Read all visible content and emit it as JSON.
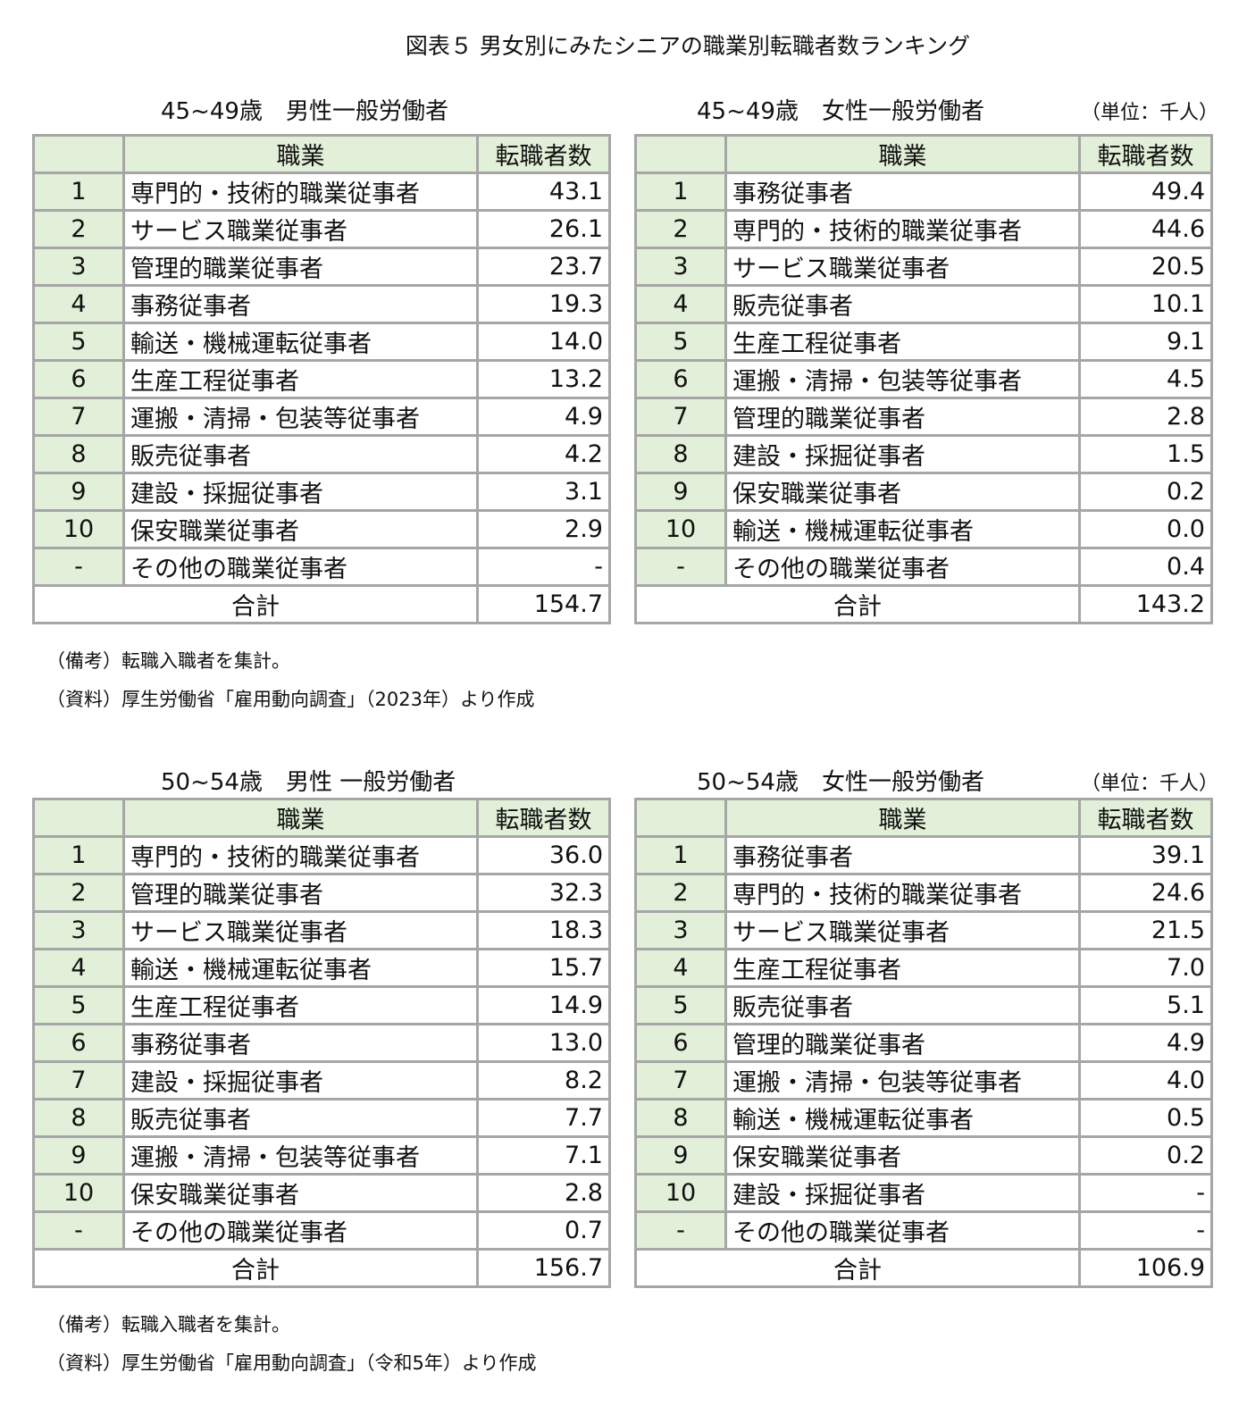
{
  "title": "図表５ 男女別にみたシニアの職業別転職者数ランキング",
  "unit": "（単位：千人）",
  "headers": {
    "occupation": "職業",
    "count": "転職者数"
  },
  "total_label": "合計",
  "tables": [
    {
      "subtitle": "45~49歳　男性一般労働者",
      "rows": [
        [
          "1",
          "専門的・技術的職業従事者",
          "43.1"
        ],
        [
          "2",
          "サービス職業従事者",
          "26.1"
        ],
        [
          "3",
          "管理的職業従事者",
          "23.7"
        ],
        [
          "4",
          "事務従事者",
          "19.3"
        ],
        [
          "5",
          "輸送・機械運転従事者",
          "14.0"
        ],
        [
          "6",
          "生産工程従事者",
          "13.2"
        ],
        [
          "7",
          "運搬・清掃・包装等従事者",
          "4.9"
        ],
        [
          "8",
          "販売従事者",
          "4.2"
        ],
        [
          "9",
          "建設・採掘従事者",
          "3.1"
        ],
        [
          "10",
          "保安職業従事者",
          "2.9"
        ],
        [
          "-",
          "その他の職業従事者",
          "-"
        ]
      ],
      "total": "154.7"
    },
    {
      "subtitle": "45~49歳　女性一般労働者",
      "rows": [
        [
          "1",
          "事務従事者",
          "49.4"
        ],
        [
          "2",
          "専門的・技術的職業従事者",
          "44.6"
        ],
        [
          "3",
          "サービス職業従事者",
          "20.5"
        ],
        [
          "4",
          "販売従事者",
          "10.1"
        ],
        [
          "5",
          "生産工程従事者",
          "9.1"
        ],
        [
          "6",
          "運搬・清掃・包装等従事者",
          "4.5"
        ],
        [
          "7",
          "管理的職業従事者",
          "2.8"
        ],
        [
          "8",
          "建設・採掘従事者",
          "1.5"
        ],
        [
          "9",
          "保安職業従事者",
          "0.2"
        ],
        [
          "10",
          "輸送・機械運転従事者",
          "0.0"
        ],
        [
          "-",
          "その他の職業従事者",
          "0.4"
        ]
      ],
      "total": "143.2"
    },
    {
      "subtitle": "50~54歳　男性 一般労働者",
      "rows": [
        [
          "1",
          "専門的・技術的職業従事者",
          "36.0"
        ],
        [
          "2",
          "管理的職業従事者",
          "32.3"
        ],
        [
          "3",
          "サービス職業従事者",
          "18.3"
        ],
        [
          "4",
          "輸送・機械運転従事者",
          "15.7"
        ],
        [
          "5",
          "生産工程従事者",
          "14.9"
        ],
        [
          "6",
          "事務従事者",
          "13.0"
        ],
        [
          "7",
          "建設・採掘従事者",
          "8.2"
        ],
        [
          "8",
          "販売従事者",
          "7.7"
        ],
        [
          "9",
          "運搬・清掃・包装等従事者",
          "7.1"
        ],
        [
          "10",
          "保安職業従事者",
          "2.8"
        ],
        [
          "-",
          "その他の職業従事者",
          "0.7"
        ]
      ],
      "total": "156.7"
    },
    {
      "subtitle": "50~54歳　女性一般労働者",
      "rows": [
        [
          "1",
          "事務従事者",
          "39.1"
        ],
        [
          "2",
          "専門的・技術的職業従事者",
          "24.6"
        ],
        [
          "3",
          "サービス職業従事者",
          "21.5"
        ],
        [
          "4",
          "生産工程従事者",
          "7.0"
        ],
        [
          "5",
          "販売従事者",
          "5.1"
        ],
        [
          "6",
          "管理的職業従事者",
          "4.9"
        ],
        [
          "7",
          "運搬・清掃・包装等従事者",
          "4.0"
        ],
        [
          "8",
          "輸送・機械運転従事者",
          "0.5"
        ],
        [
          "9",
          "保安職業従事者",
          "0.2"
        ],
        [
          "10",
          "建設・採掘従事者",
          "-"
        ],
        [
          "-",
          "その他の職業従事者",
          "-"
        ]
      ],
      "total": "106.9"
    }
  ],
  "notes_top": [
    "（備考）転職入職者を集計。",
    "（資料）厚生労働省「雇用動向調査」（2023年）より作成"
  ],
  "notes_bottom": [
    "（備考）転職入職者を集計。",
    "（資料）厚生労働省「雇用動向調査」（令和5年）より作成"
  ]
}
